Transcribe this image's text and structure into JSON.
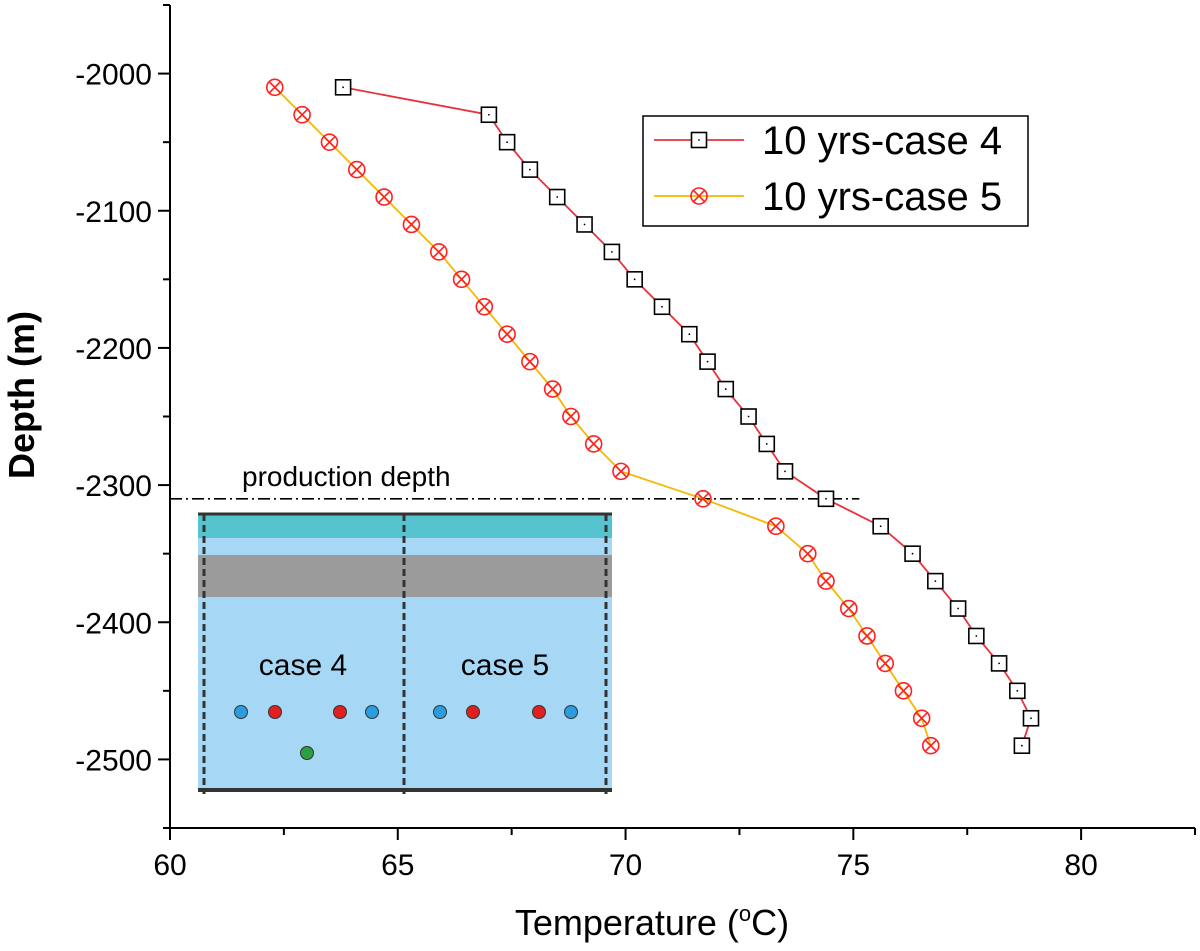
{
  "chart_data": {
    "type": "line",
    "xlabel": "Temperature (°C)",
    "xlabel_parts": {
      "prefix": "Temperature (",
      "sup": "o",
      "suffix": "C)"
    },
    "ylabel": "Depth (m)",
    "xlim": [
      60,
      82.5
    ],
    "ylim": [
      -2550,
      -1950
    ],
    "xticks": [
      60,
      65,
      70,
      75,
      80
    ],
    "yticks": [
      -2000,
      -2100,
      -2200,
      -2300,
      -2400,
      -2500
    ],
    "legend_position": "top-right",
    "series": [
      {
        "name": "10 yrs-case 4",
        "line_color": "#e8323c",
        "marker": "open-square",
        "marker_color": "#000000",
        "x": [
          63.8,
          67.0,
          67.4,
          67.9,
          68.5,
          69.1,
          69.7,
          70.2,
          70.8,
          71.4,
          71.8,
          72.2,
          72.7,
          73.1,
          73.5,
          74.4,
          75.6,
          76.3,
          76.8,
          77.3,
          77.7,
          78.2,
          78.6,
          78.9,
          78.7
        ],
        "y": [
          -2010,
          -2030,
          -2050,
          -2070,
          -2090,
          -2110,
          -2130,
          -2150,
          -2170,
          -2190,
          -2210,
          -2230,
          -2250,
          -2270,
          -2290,
          -2310,
          -2330,
          -2350,
          -2370,
          -2390,
          -2410,
          -2430,
          -2450,
          -2470,
          -2490
        ]
      },
      {
        "name": "10 yrs-case 5",
        "line_color": "#f5b800",
        "marker": "circled-x",
        "marker_color": "#ff2020",
        "x": [
          62.3,
          62.9,
          63.5,
          64.1,
          64.7,
          65.3,
          65.9,
          66.4,
          66.9,
          67.4,
          67.9,
          68.4,
          68.8,
          69.3,
          69.9,
          71.7,
          73.3,
          74.0,
          74.4,
          74.9,
          75.3,
          75.7,
          76.1,
          76.5,
          76.7
        ],
        "y": [
          -2010,
          -2030,
          -2050,
          -2070,
          -2090,
          -2110,
          -2130,
          -2150,
          -2170,
          -2190,
          -2210,
          -2230,
          -2250,
          -2270,
          -2290,
          -2310,
          -2330,
          -2350,
          -2370,
          -2390,
          -2410,
          -2430,
          -2450,
          -2470,
          -2490
        ]
      }
    ],
    "annotations": [
      {
        "text": "production depth",
        "y": -2310,
        "x_from": 60,
        "x_to": 75.0,
        "style": "dash-dot"
      }
    ],
    "inset": {
      "labels": [
        "case 4",
        "case 5"
      ],
      "layer_colors": {
        "top": "#55c4cf",
        "middle": "#9b9b9b",
        "bottom": "#a6d8f5"
      },
      "well_colors": {
        "injection": "#2a9de0",
        "production": "#e02020",
        "monitor": "#2aa040"
      }
    }
  }
}
